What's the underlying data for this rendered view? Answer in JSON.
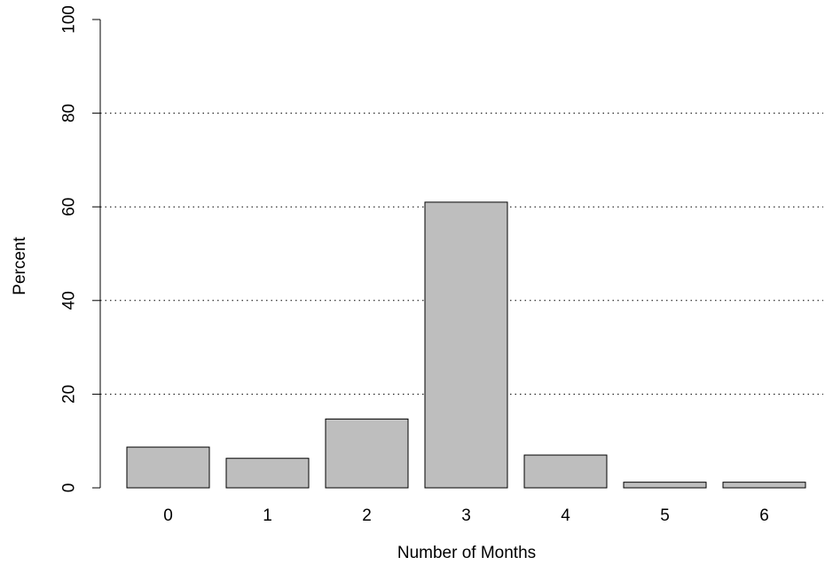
{
  "chart_data": {
    "type": "bar",
    "categories": [
      "0",
      "1",
      "2",
      "3",
      "4",
      "5",
      "6"
    ],
    "values": [
      8.7,
      6.3,
      14.7,
      61.0,
      7.0,
      1.2,
      1.2
    ],
    "title": "",
    "xlabel": "Number of Months",
    "ylabel": "Percent",
    "ylim": [
      0,
      100
    ],
    "yticks": [
      0,
      20,
      40,
      60,
      80,
      100
    ],
    "grid": "horizontal dotted",
    "bar_color": "#bebebe",
    "legend": "none"
  }
}
